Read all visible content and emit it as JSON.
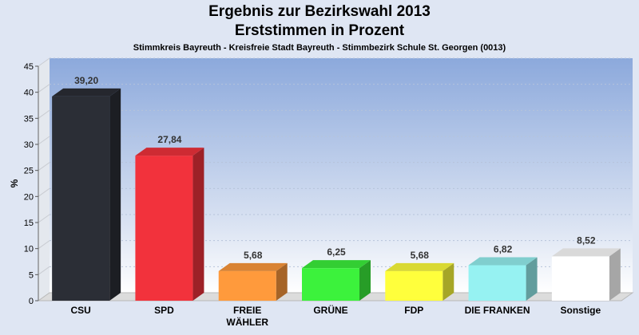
{
  "chart_data": {
    "type": "bar",
    "title": "Ergebnis zur Bezirkswahl 2013",
    "title_line2": "Erststimmen in Prozent",
    "subtitle": "Stimmkreis Bayreuth - Kreisfreie Stadt Bayreuth - Stimmbezirk Schule St. Georgen (0013)",
    "ylabel": "%",
    "ylim": [
      0,
      45
    ],
    "yticks": [
      0,
      5,
      10,
      15,
      20,
      25,
      30,
      35,
      40,
      45
    ],
    "grid": true,
    "categories": [
      {
        "label": [
          "CSU"
        ],
        "value": 39.2,
        "value_label": "39,20",
        "color": "#2b2e36"
      },
      {
        "label": [
          "SPD"
        ],
        "value": 27.84,
        "value_label": "27,84",
        "color": "#f2323c"
      },
      {
        "label": [
          "FREIE",
          "WÄHLER"
        ],
        "value": 5.68,
        "value_label": "5,68",
        "color": "#ff9a3c"
      },
      {
        "label": [
          "GRÜNE"
        ],
        "value": 6.25,
        "value_label": "6,25",
        "color": "#3cf23c"
      },
      {
        "label": [
          "FDP"
        ],
        "value": 5.68,
        "value_label": "5,68",
        "color": "#ffff3c"
      },
      {
        "label": [
          "DIE FRANKEN"
        ],
        "value": 6.82,
        "value_label": "6,82",
        "color": "#96f2f2"
      },
      {
        "label": [
          "Sonstige"
        ],
        "value": 8.52,
        "value_label": "8,52",
        "color": "#ffffff"
      }
    ]
  }
}
